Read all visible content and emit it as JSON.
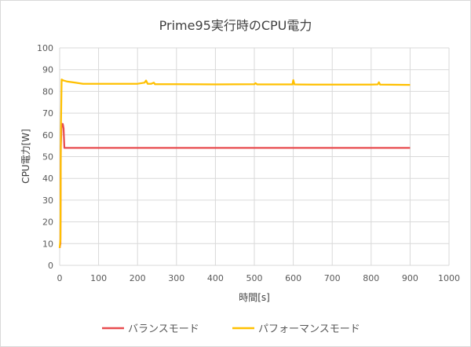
{
  "chart_data": {
    "type": "line",
    "title": "Prime95実行時のCPU電力",
    "xlabel": "時間[s]",
    "ylabel": "CPU電力[W]",
    "xlim": [
      0,
      1000
    ],
    "ylim": [
      0,
      100
    ],
    "xticks": [
      0,
      100,
      200,
      300,
      400,
      500,
      600,
      700,
      800,
      900,
      1000
    ],
    "yticks": [
      0,
      10,
      20,
      30,
      40,
      50,
      60,
      70,
      80,
      90,
      100
    ],
    "grid": true,
    "legend_position": "bottom",
    "series": [
      {
        "name": "バランスモード",
        "color": "#e84c4f",
        "x": [
          0,
          2,
          3,
          5,
          8,
          10,
          12,
          15,
          20,
          900
        ],
        "y": [
          8,
          10,
          55,
          65,
          65,
          63,
          54,
          54,
          54,
          54
        ]
      },
      {
        "name": "パフォーマンスモード",
        "color": "#ffc000",
        "x": [
          0,
          2,
          3,
          5,
          10,
          20,
          40,
          60,
          100,
          200,
          218,
          222,
          226,
          235,
          242,
          245,
          250,
          300,
          400,
          500,
          503,
          507,
          550,
          598,
          600,
          603,
          650,
          700,
          800,
          817,
          820,
          823,
          900
        ],
        "y": [
          8,
          12,
          60,
          85.5,
          85,
          84.5,
          84,
          83.5,
          83.5,
          83.5,
          84,
          85,
          83.5,
          83.5,
          84,
          83.3,
          83.3,
          83.3,
          83.2,
          83.3,
          83.8,
          83.2,
          83.2,
          83.2,
          85.2,
          83.2,
          83.1,
          83.1,
          83.1,
          83.2,
          84.2,
          83.1,
          83
        ]
      }
    ]
  }
}
